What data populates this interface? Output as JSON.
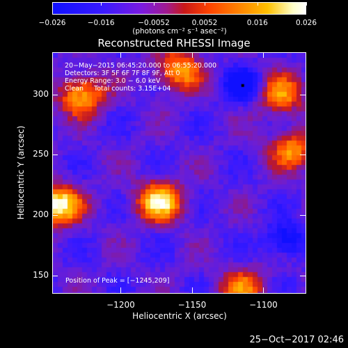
{
  "chart_data": {
    "type": "heatmap",
    "title": "Reconstructed RHESSI Image",
    "xlabel": "Heliocentric X (arcsec)",
    "ylabel": "Heliocentric Y (arcsec)",
    "xlim": [
      -1248,
      -1070
    ],
    "ylim": [
      135,
      335
    ],
    "x_ticks": [
      -1200,
      -1150,
      -1100
    ],
    "x_tick_labels": [
      "−1200",
      "−1150",
      "−1100"
    ],
    "y_ticks": [
      150,
      200,
      250,
      300
    ],
    "y_tick_labels": [
      "150",
      "200",
      "250",
      "300"
    ],
    "colorbar": {
      "units": "(photons cm⁻² s⁻¹ asec⁻²)",
      "range": [
        -0.026,
        0.026
      ],
      "ticks": [
        -0.026,
        -0.016,
        -0.0052,
        0.0052,
        0.016,
        0.026
      ],
      "tick_labels": [
        "−0.026",
        "−0.016",
        "−0.0052",
        "0.0052",
        "0.016",
        "0.026"
      ]
    },
    "annotations": {
      "time_range": "20−May−2015 06:45:20.000 to 06:55:20.000",
      "detectors": "Detectors: 3F 5F 6F 7F 8F 9F, Att 0",
      "energy_range": "Energy Range: 3.0 − 6.0 keV",
      "clean": "Clean     Total counts: 3.15E+04",
      "peak": "Position of Peak = [−1245,209]"
    },
    "peak_position": [
      -1245,
      209
    ],
    "sources": [
      {
        "x": -1245,
        "y": 209,
        "intensity": 0.026
      },
      {
        "x": -1173,
        "y": 212,
        "intensity": 0.022
      },
      {
        "x": -1228,
        "y": 300,
        "intensity": 0.017
      },
      {
        "x": -1160,
        "y": 320,
        "intensity": 0.015
      },
      {
        "x": -1088,
        "y": 300,
        "intensity": 0.013
      },
      {
        "x": -1080,
        "y": 255,
        "intensity": 0.012
      },
      {
        "x": -1115,
        "y": 140,
        "intensity": 0.01
      },
      {
        "x": -1115,
        "y": 308,
        "intensity": -0.022
      },
      {
        "x": -1085,
        "y": 180,
        "intensity": -0.02
      }
    ]
  },
  "footer": {
    "timestamp": "25−Oct−2017 02:46"
  }
}
